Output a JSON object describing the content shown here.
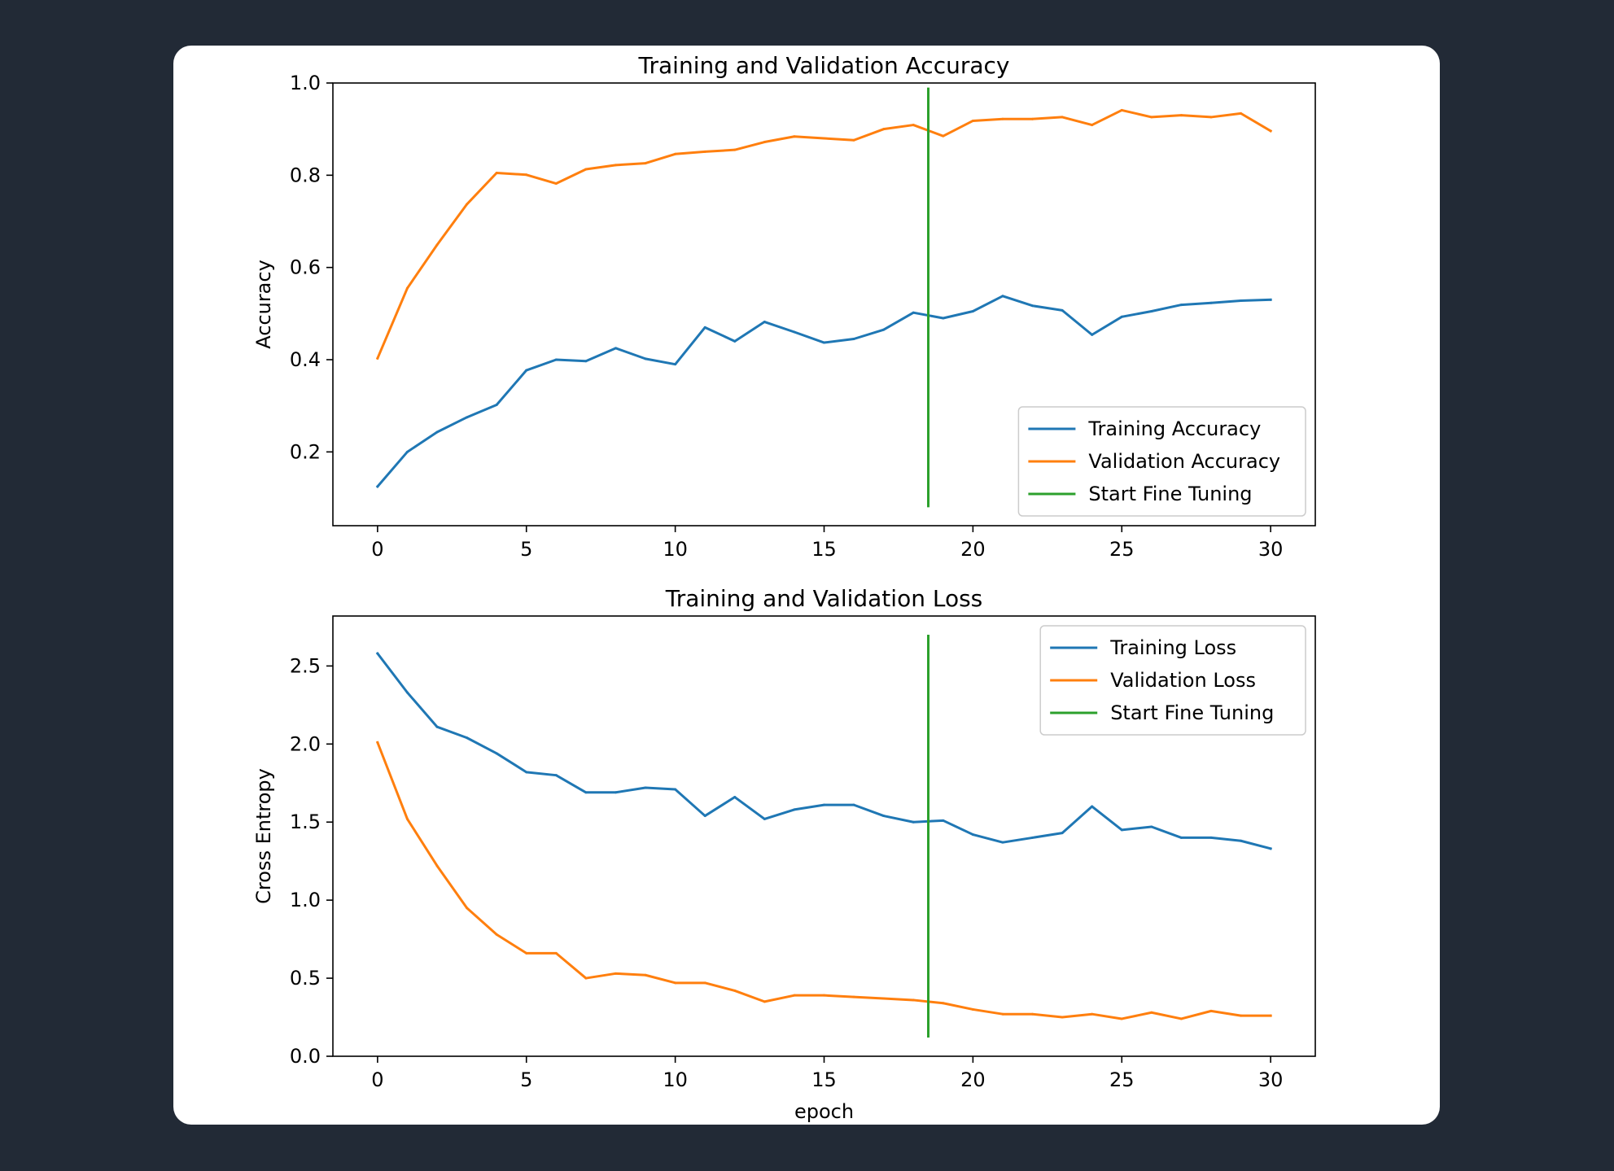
{
  "chart_data": [
    {
      "type": "line",
      "title": "Training and Validation Accuracy",
      "xlabel": "",
      "ylabel": "Accuracy",
      "xlim": [
        -1.5,
        31.5
      ],
      "ylim": [
        0.04,
        1.0
      ],
      "xticks": [
        0,
        5,
        10,
        15,
        20,
        25,
        30
      ],
      "yticks": [
        0.2,
        0.4,
        0.6,
        0.8,
        1.0
      ],
      "ytick_labels": [
        "0.2",
        "0.4",
        "0.6",
        "0.8",
        "1.0"
      ],
      "grid": false,
      "legend_position": "lower-right",
      "x": [
        0,
        1,
        2,
        3,
        4,
        5,
        6,
        7,
        8,
        9,
        10,
        11,
        12,
        13,
        14,
        15,
        16,
        17,
        18,
        19,
        20,
        21,
        22,
        23,
        24,
        25,
        26,
        27,
        28,
        29,
        30
      ],
      "series": [
        {
          "name": "Training Accuracy",
          "color": "#1f77b4",
          "values": [
            0.125,
            0.2,
            0.243,
            0.275,
            0.302,
            0.377,
            0.4,
            0.397,
            0.425,
            0.402,
            0.39,
            0.47,
            0.44,
            0.482,
            0.46,
            0.437,
            0.445,
            0.465,
            0.502,
            0.49,
            0.505,
            0.538,
            0.517,
            0.507,
            0.454,
            0.493,
            0.505,
            0.519,
            0.523,
            0.528,
            0.53
          ]
        },
        {
          "name": "Validation Accuracy",
          "color": "#ff7f0e",
          "values": [
            0.403,
            0.555,
            0.649,
            0.737,
            0.805,
            0.801,
            0.782,
            0.813,
            0.822,
            0.826,
            0.846,
            0.851,
            0.855,
            0.872,
            0.884,
            0.88,
            0.876,
            0.9,
            0.909,
            0.885,
            0.918,
            0.922,
            0.922,
            0.926,
            0.909,
            0.941,
            0.926,
            0.93,
            0.926,
            0.934,
            0.896
          ]
        }
      ],
      "vline": {
        "name": "Start Fine Tuning",
        "color": "#2ca02c",
        "x": 18.5,
        "y_range": [
          0.08,
          0.99
        ]
      }
    },
    {
      "type": "line",
      "title": "Training and Validation Loss",
      "xlabel": "epoch",
      "ylabel": "Cross Entropy",
      "xlim": [
        -1.5,
        31.5
      ],
      "ylim": [
        0.0,
        2.82
      ],
      "xticks": [
        0,
        5,
        10,
        15,
        20,
        25,
        30
      ],
      "yticks": [
        0.0,
        0.5,
        1.0,
        1.5,
        2.0,
        2.5
      ],
      "ytick_labels": [
        "0.0",
        "0.5",
        "1.0",
        "1.5",
        "2.0",
        "2.5"
      ],
      "grid": false,
      "legend_position": "upper-right",
      "x": [
        0,
        1,
        2,
        3,
        4,
        5,
        6,
        7,
        8,
        9,
        10,
        11,
        12,
        13,
        14,
        15,
        16,
        17,
        18,
        19,
        20,
        21,
        22,
        23,
        24,
        25,
        26,
        27,
        28,
        29,
        30
      ],
      "series": [
        {
          "name": "Training Loss",
          "color": "#1f77b4",
          "values": [
            2.58,
            2.33,
            2.11,
            2.04,
            1.94,
            1.82,
            1.8,
            1.69,
            1.69,
            1.72,
            1.71,
            1.54,
            1.66,
            1.52,
            1.58,
            1.61,
            1.61,
            1.54,
            1.5,
            1.51,
            1.42,
            1.37,
            1.4,
            1.43,
            1.6,
            1.45,
            1.47,
            1.4,
            1.4,
            1.38,
            1.33
          ]
        },
        {
          "name": "Validation Loss",
          "color": "#ff7f0e",
          "values": [
            2.01,
            1.52,
            1.22,
            0.95,
            0.78,
            0.66,
            0.66,
            0.5,
            0.53,
            0.52,
            0.47,
            0.47,
            0.42,
            0.35,
            0.39,
            0.39,
            0.38,
            0.37,
            0.36,
            0.34,
            0.3,
            0.27,
            0.27,
            0.25,
            0.27,
            0.24,
            0.28,
            0.24,
            0.29,
            0.26,
            0.26
          ]
        }
      ],
      "vline": {
        "name": "Start Fine Tuning",
        "color": "#2ca02c",
        "x": 18.5,
        "y_range": [
          0.12,
          2.7
        ]
      }
    }
  ]
}
